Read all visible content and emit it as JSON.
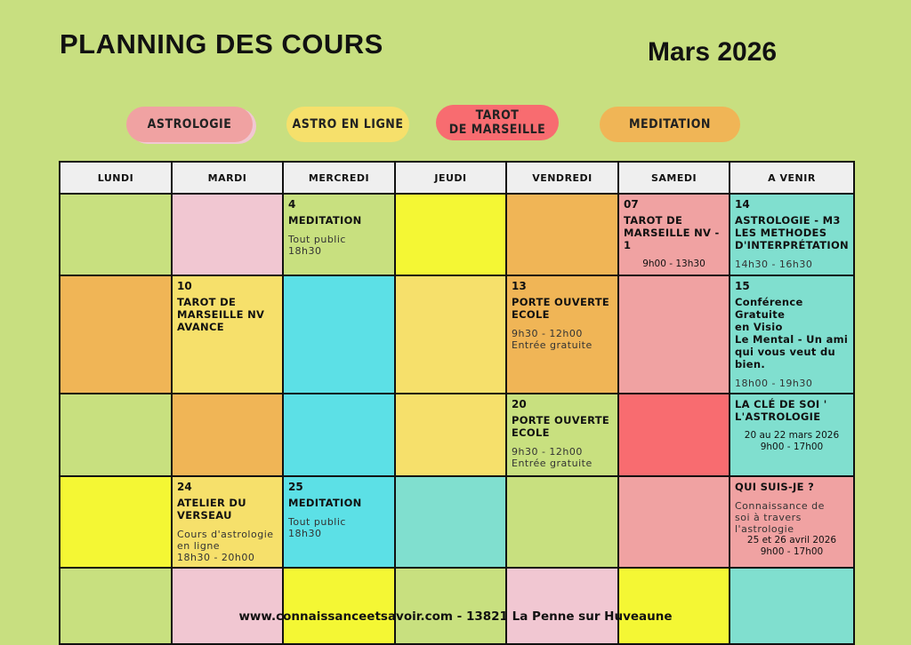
{
  "header": {
    "title": "PLANNING DES COURS",
    "month": "Mars 2026"
  },
  "legend": [
    {
      "label": "ASTROLOGIE",
      "color": "#f0a2a2"
    },
    {
      "label": "ASTRO EN LIGNE",
      "color": "#f6e06b"
    },
    {
      "label": "TAROT\nDE MARSEILLE",
      "color": "#f86c70"
    },
    {
      "label": "MEDITATION",
      "color": "#f0b556"
    }
  ],
  "columns": [
    "LUNDI",
    "MARDI",
    "MERCREDI",
    "JEUDI",
    "VENDREDI",
    "SAMEDI",
    "A VENIR"
  ],
  "colors": {
    "green": "#c8e07f",
    "pink": "#f1c7d2",
    "yellow": "#f4f734",
    "orange": "#f0b556",
    "rose": "#f0a2a2",
    "teal": "#80dfcf",
    "gold": "#f6e06b",
    "cyan": "#5ce0e6",
    "red": "#f86c70",
    "header": "#efefef"
  },
  "rows": [
    [
      {
        "c": "green"
      },
      {
        "c": "pink"
      },
      {
        "c": "green",
        "day": "4",
        "title": "MEDITATION",
        "text": "Tout public\n18h30"
      },
      {
        "c": "yellow"
      },
      {
        "c": "orange"
      },
      {
        "c": "rose",
        "day": "07",
        "title": "TAROT DE\nMARSEILLE NV - 1",
        "center": "9h00 - 13h30"
      },
      {
        "c": "teal",
        "day": "14",
        "title": "ASTROLOGIE - M3\nLES METHODES\nD'INTERPRÉTATION",
        "text": "14h30 - 16h30"
      }
    ],
    [
      {
        "c": "orange"
      },
      {
        "c": "gold",
        "day": "10",
        "title": "TAROT DE\nMARSEILLE NV\nAVANCE"
      },
      {
        "c": "cyan"
      },
      {
        "c": "gold"
      },
      {
        "c": "orange",
        "day": "13",
        "title": "PORTE OUVERTE\nECOLE",
        "text": "9h30 - 12h00\nEntrée gratuite"
      },
      {
        "c": "rose"
      },
      {
        "c": "teal",
        "day": "15",
        "title": "Conférence Gratuite\nen Visio\nLe Mental - Un ami\nqui vous veut du\nbien.",
        "text": "18h00 - 19h30"
      }
    ],
    [
      {
        "c": "green"
      },
      {
        "c": "orange"
      },
      {
        "c": "cyan"
      },
      {
        "c": "gold"
      },
      {
        "c": "green",
        "day": "20",
        "title": "PORTE OUVERTE\nECOLE",
        "text": "9h30 - 12h00\nEntrée gratuite"
      },
      {
        "c": "red"
      },
      {
        "c": "teal",
        "title": "LA CLÉ DE SOI '\nL'ASTROLOGIE",
        "center": "20 au 22 mars 2026\n9h00 - 17h00"
      }
    ],
    [
      {
        "c": "yellow"
      },
      {
        "c": "gold",
        "day": "24",
        "title": "ATELIER DU VERSEAU",
        "text": "Cours d'astrologie\nen ligne\n18h30 - 20h00"
      },
      {
        "c": "cyan",
        "day": "25",
        "title": "MEDITATION",
        "text": "Tout public\n18h30"
      },
      {
        "c": "teal"
      },
      {
        "c": "green"
      },
      {
        "c": "rose"
      },
      {
        "c": "rose",
        "title": "QUI SUIS-JE ?",
        "text": "Connaissance de\nsoi à travers\nl'astrologie",
        "center": "25 et 26 avril 2026\n9h00 - 17h00"
      }
    ],
    [
      {
        "c": "green"
      },
      {
        "c": "pink"
      },
      {
        "c": "yellow"
      },
      {
        "c": "green"
      },
      {
        "c": "pink"
      },
      {
        "c": "yellow"
      },
      {
        "c": "teal"
      }
    ]
  ],
  "footer": "www.connaissanceetsavoir.com - 13821 La Penne sur Huveaune"
}
